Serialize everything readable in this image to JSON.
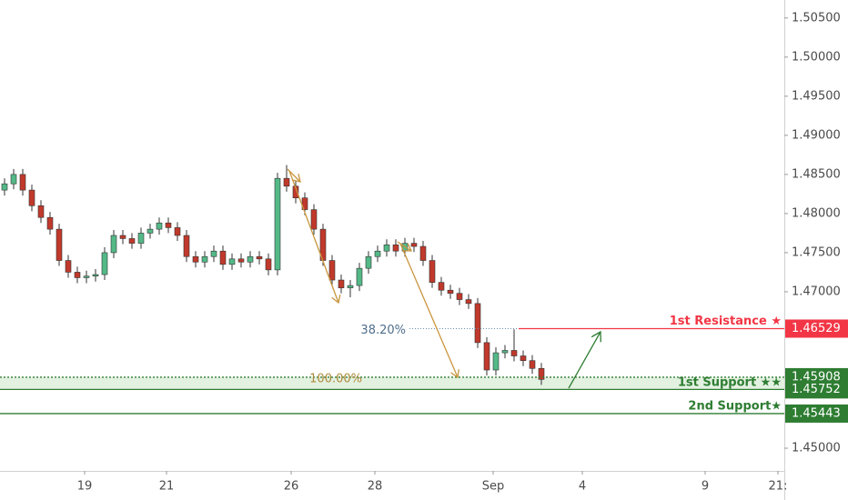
{
  "chart_data": {
    "type": "candlestick",
    "open": [
      1.483,
      1.4838,
      1.485,
      1.483,
      1.481,
      1.4795,
      1.478,
      1.474,
      1.4725,
      1.4718,
      1.472,
      1.4722,
      1.475,
      1.4772,
      1.4768,
      1.4762,
      1.4775,
      1.478,
      1.4788,
      1.4782,
      1.4772,
      1.4745,
      1.4738,
      1.4745,
      1.4752,
      1.4735,
      1.4742,
      1.4738,
      1.4745,
      1.4742,
      1.4728,
      1.4845,
      1.4835,
      1.482,
      1.4805,
      1.478,
      1.474,
      1.4715,
      1.4705,
      1.4708,
      1.473,
      1.4745,
      1.4752,
      1.476,
      1.4752,
      1.4762,
      1.4758,
      1.474,
      1.4712,
      1.4702,
      1.4698,
      1.469,
      1.4685,
      1.4635,
      1.46,
      1.4622,
      1.4625,
      1.4618,
      1.4612,
      1.4602
    ],
    "high": [
      1.4845,
      1.4857,
      1.4857,
      1.4837,
      1.4817,
      1.4802,
      1.4787,
      1.4747,
      1.4732,
      1.4727,
      1.4729,
      1.4757,
      1.4779,
      1.4779,
      1.4775,
      1.4782,
      1.4787,
      1.4795,
      1.4795,
      1.4789,
      1.4779,
      1.4752,
      1.4752,
      1.4759,
      1.4759,
      1.4749,
      1.4749,
      1.4752,
      1.4752,
      1.4749,
      1.4852,
      1.4862,
      1.4842,
      1.4827,
      1.4812,
      1.4787,
      1.4747,
      1.4722,
      1.4715,
      1.4737,
      1.4752,
      1.4759,
      1.4767,
      1.4767,
      1.4769,
      1.4769,
      1.4765,
      1.4747,
      1.4719,
      1.4709,
      1.4705,
      1.4697,
      1.4692,
      1.4642,
      1.4629,
      1.4632,
      1.4652,
      1.4625,
      1.4619,
      1.4609
    ],
    "low": [
      1.4823,
      1.4831,
      1.4823,
      1.4803,
      1.4788,
      1.4773,
      1.4733,
      1.4718,
      1.4711,
      1.4711,
      1.4713,
      1.4715,
      1.4743,
      1.4761,
      1.4755,
      1.4755,
      1.4768,
      1.4773,
      1.4775,
      1.4765,
      1.4738,
      1.4731,
      1.4731,
      1.4738,
      1.4728,
      1.4728,
      1.4731,
      1.4731,
      1.4735,
      1.4721,
      1.4721,
      1.4828,
      1.4813,
      1.4798,
      1.4773,
      1.4733,
      1.4708,
      1.4698,
      1.4693,
      1.4701,
      1.4723,
      1.4738,
      1.4745,
      1.4745,
      1.4745,
      1.4751,
      1.4733,
      1.4705,
      1.4695,
      1.4691,
      1.4683,
      1.4678,
      1.4628,
      1.4593,
      1.4593,
      1.4615,
      1.4611,
      1.4605,
      1.4595,
      1.4581
    ],
    "close": [
      1.4838,
      1.485,
      1.483,
      1.481,
      1.4795,
      1.478,
      1.474,
      1.4725,
      1.4718,
      1.472,
      1.4722,
      1.475,
      1.4772,
      1.4768,
      1.4762,
      1.4775,
      1.478,
      1.4788,
      1.4782,
      1.4772,
      1.4745,
      1.4738,
      1.4745,
      1.4752,
      1.4735,
      1.4742,
      1.4738,
      1.4745,
      1.4742,
      1.4728,
      1.4845,
      1.4835,
      1.482,
      1.4805,
      1.478,
      1.474,
      1.4715,
      1.4705,
      1.4708,
      1.473,
      1.4745,
      1.4752,
      1.476,
      1.4752,
      1.4762,
      1.4758,
      1.474,
      1.4712,
      1.4702,
      1.4698,
      1.469,
      1.4685,
      1.4635,
      1.46,
      1.4622,
      1.4625,
      1.4618,
      1.4612,
      1.4602,
      1.4588
    ],
    "up_color": "#53b987",
    "down_color": "#c0392b",
    "xlim": [
      -0.5,
      85.7
    ],
    "ylim": [
      1.4471,
      1.5073
    ],
    "xticks": [
      {
        "value": 8.8,
        "label": "19"
      },
      {
        "value": 17.8,
        "label": "21"
      },
      {
        "value": 31.5,
        "label": "26"
      },
      {
        "value": 40.7,
        "label": "28"
      },
      {
        "value": 53.7,
        "label": "Sep"
      },
      {
        "value": 63.5,
        "label": "4"
      },
      {
        "value": 77.0,
        "label": "9"
      },
      {
        "value": 85.0,
        "label": "21:"
      }
    ],
    "yticks": [
      {
        "value": 1.505,
        "label": "1.50500"
      },
      {
        "value": 1.5,
        "label": "1.50000"
      },
      {
        "value": 1.495,
        "label": "1.49500"
      },
      {
        "value": 1.49,
        "label": "1.49000"
      },
      {
        "value": 1.485,
        "label": "1.48500"
      },
      {
        "value": 1.48,
        "label": "1.48000"
      },
      {
        "value": 1.475,
        "label": "1.47500"
      },
      {
        "value": 1.47,
        "label": "1.47000"
      },
      {
        "value": 1.45,
        "label": "1.45000"
      }
    ],
    "levels": [
      {
        "name": "1st Resistance ★",
        "value": 1.46529,
        "color": "#f23645"
      },
      {
        "name": "1st Support ★★",
        "value": 1.45908,
        "color": "#2e7d32"
      },
      {
        "value": 1.45752,
        "color": "#2e7d32"
      },
      {
        "name": "2nd Support★",
        "value": 1.45443,
        "color": "#2e7d32"
      }
    ],
    "zone_color": "#e3f1e1",
    "fib_labels": [
      "38.20%",
      "100.00%"
    ]
  }
}
